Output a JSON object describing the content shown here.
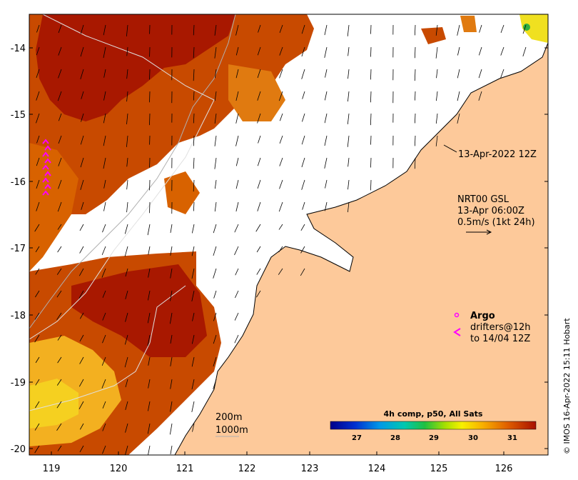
{
  "map": {
    "y_axis_ticks": [
      "-14",
      "-15",
      "-16",
      "-17",
      "-18",
      "-19",
      "-20"
    ],
    "x_axis_ticks": [
      "119",
      "120",
      "121",
      "122",
      "123",
      "124",
      "125",
      "126"
    ],
    "timestamp_label": "13-Apr-2022 12Z",
    "current_info": {
      "line1": "NRT00 GSL",
      "line2": "13-Apr 06:00Z",
      "line3": "0.5m/s (1kt 24h)"
    },
    "legend": {
      "argo_label": "Argo",
      "drifters_line1": "drifters@12h",
      "drifters_line2": "to 14/04 12Z",
      "argo_color": "#ff00ff",
      "drifter_color": "#ff00ff"
    },
    "contours": {
      "line1": "200m",
      "line2": "1000m"
    },
    "colorbar": {
      "title": "4h comp, p50, All Sats",
      "ticks": [
        "27",
        "28",
        "29",
        "30",
        "31"
      ]
    },
    "credit": "© IMOS 16-Apr-2022 15:11 Hobart",
    "colors": {
      "land": "#fdc99a",
      "sst_warm": "#c84a00",
      "sst_hot": "#a81800",
      "sst_mid": "#e07a10",
      "sst_cool": "#f3b020",
      "no_data": "#ffffff"
    }
  }
}
